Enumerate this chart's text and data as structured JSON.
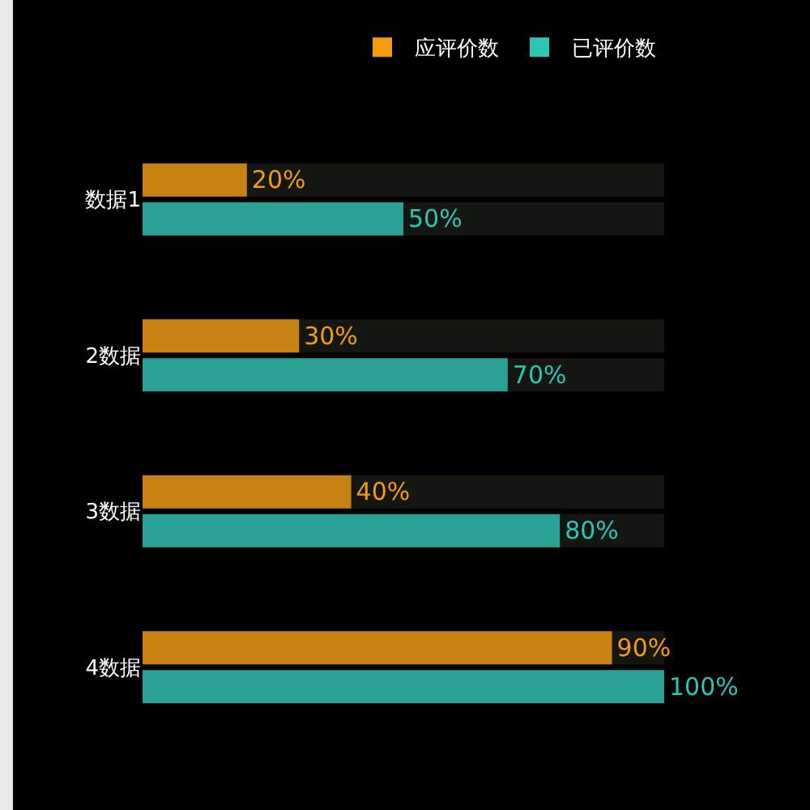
{
  "chart_data": {
    "type": "bar",
    "orientation": "horizontal",
    "categories": [
      "数据1",
      "2数据",
      "3数据",
      "4数据"
    ],
    "series": [
      {
        "name": "应评价数",
        "color": "#f39c12",
        "values": [
          20,
          30,
          40,
          90
        ],
        "value_labels": [
          "20%",
          "30%",
          "40%",
          "90%"
        ]
      },
      {
        "name": "已评价数",
        "color": "#2ec4b6",
        "values": [
          50,
          70,
          80,
          100
        ],
        "value_labels": [
          "50%",
          "70%",
          "80%",
          "100%"
        ]
      }
    ],
    "xlim": [
      0,
      100
    ],
    "tick_labels": "y",
    "legend": "top right"
  }
}
